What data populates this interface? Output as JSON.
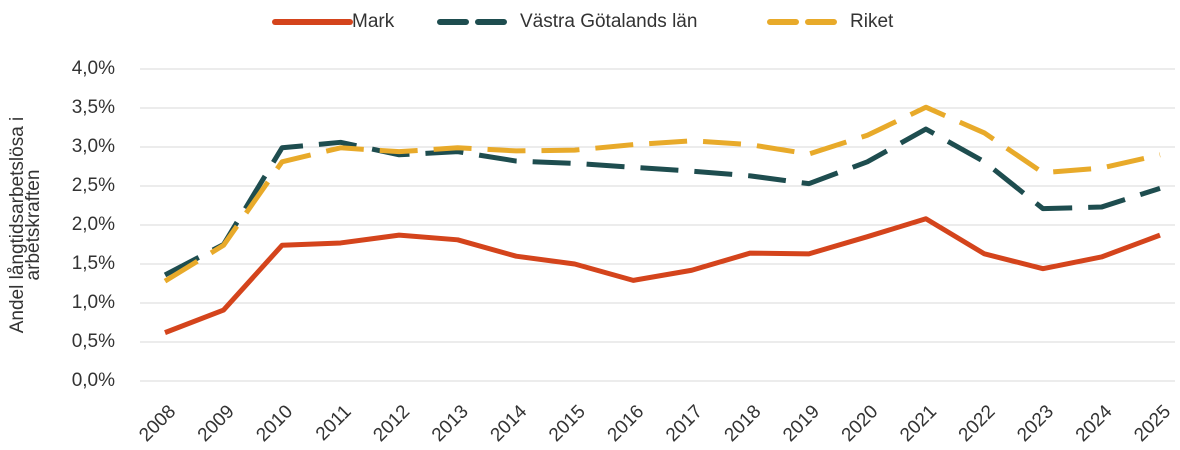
{
  "chart_data": {
    "type": "line",
    "ylabel": [
      "Andel långtidsarbetslösa i",
      "arbetskraften"
    ],
    "categories": [
      "2008",
      "2009",
      "2010",
      "2011",
      "2012",
      "2013",
      "2014",
      "2015",
      "2016",
      "2017",
      "2018",
      "2019",
      "2020",
      "2021",
      "2022",
      "2023",
      "2024",
      "2025"
    ],
    "series": [
      {
        "name": "Mark",
        "color": "#d4441c",
        "style": "solid",
        "values": [
          0.62,
          0.91,
          1.74,
          1.77,
          1.87,
          1.81,
          1.6,
          1.5,
          1.29,
          1.42,
          1.64,
          1.63,
          1.85,
          2.08,
          1.63,
          1.44,
          1.59,
          1.87
        ]
      },
      {
        "name": "Västra Götalands län",
        "color": "#1e4d4f",
        "style": "dashed",
        "values": [
          1.36,
          1.75,
          2.99,
          3.06,
          2.9,
          2.94,
          2.82,
          2.79,
          2.74,
          2.69,
          2.63,
          2.53,
          2.81,
          3.23,
          2.81,
          2.21,
          2.23,
          2.47
        ]
      },
      {
        "name": "Riket",
        "color": "#e8aa2a",
        "style": "dashed",
        "values": [
          1.28,
          1.74,
          2.81,
          2.99,
          2.94,
          2.99,
          2.95,
          2.96,
          3.03,
          3.08,
          3.03,
          2.91,
          3.15,
          3.51,
          3.18,
          2.67,
          2.73,
          2.9
        ]
      }
    ],
    "ylim": [
      0,
      4
    ],
    "yticks": [
      {
        "value": 0,
        "label": "0,0%"
      },
      {
        "value": 0.5,
        "label": "0,5%"
      },
      {
        "value": 1,
        "label": "1,0%"
      },
      {
        "value": 1.5,
        "label": "1,5%"
      },
      {
        "value": 2,
        "label": "2,0%"
      },
      {
        "value": 2.5,
        "label": "2,5%"
      },
      {
        "value": 3,
        "label": "3,0%"
      },
      {
        "value": 3.5,
        "label": "3,5%"
      },
      {
        "value": 4,
        "label": "4,0%"
      }
    ],
    "grid": true,
    "legend": "top"
  }
}
